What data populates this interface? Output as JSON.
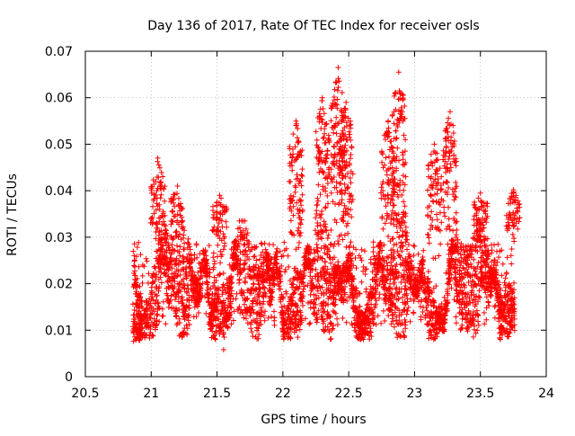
{
  "chart_data": {
    "type": "scatter",
    "title": "Day 136 of 2017, Rate Of TEC Index for receiver osls",
    "xlabel": "GPS time / hours",
    "ylabel": "ROTI / TECUs",
    "xlim": [
      20.5,
      24
    ],
    "ylim": [
      0,
      0.07
    ],
    "x_ticks": [
      "20.5",
      "21",
      "21.5",
      "22",
      "22.5",
      "23",
      "23.5",
      "24"
    ],
    "y_ticks": [
      "0",
      "0.01",
      "0.02",
      "0.03",
      "0.04",
      "0.05",
      "0.06",
      "0.07"
    ],
    "x_tick_values": [
      20.5,
      21,
      21.5,
      22,
      22.5,
      23,
      23.5,
      24
    ],
    "y_tick_values": [
      0,
      0.01,
      0.02,
      0.03,
      0.04,
      0.05,
      0.06,
      0.07
    ],
    "grid": true,
    "marker": "+",
    "series": [
      {
        "name": "ROTI",
        "color": "#ff0000",
        "x_start": 20.86,
        "x_end": 23.76,
        "points_per_hour": 1300,
        "typical_range": [
          0.008,
          0.035
        ],
        "median": 0.02,
        "peaks": [
          {
            "x": 21.05,
            "y": 0.047
          },
          {
            "x": 21.2,
            "y": 0.041
          },
          {
            "x": 21.52,
            "y": 0.039
          },
          {
            "x": 22.1,
            "y": 0.055
          },
          {
            "x": 22.3,
            "y": 0.06
          },
          {
            "x": 22.42,
            "y": 0.0665
          },
          {
            "x": 22.48,
            "y": 0.059
          },
          {
            "x": 22.8,
            "y": 0.055
          },
          {
            "x": 22.88,
            "y": 0.0655
          },
          {
            "x": 23.15,
            "y": 0.05
          },
          {
            "x": 23.27,
            "y": 0.057
          },
          {
            "x": 23.5,
            "y": 0.0395
          },
          {
            "x": 23.75,
            "y": 0.0402
          }
        ],
        "minimum": {
          "x": 21.55,
          "y": 0.0058
        }
      }
    ]
  }
}
